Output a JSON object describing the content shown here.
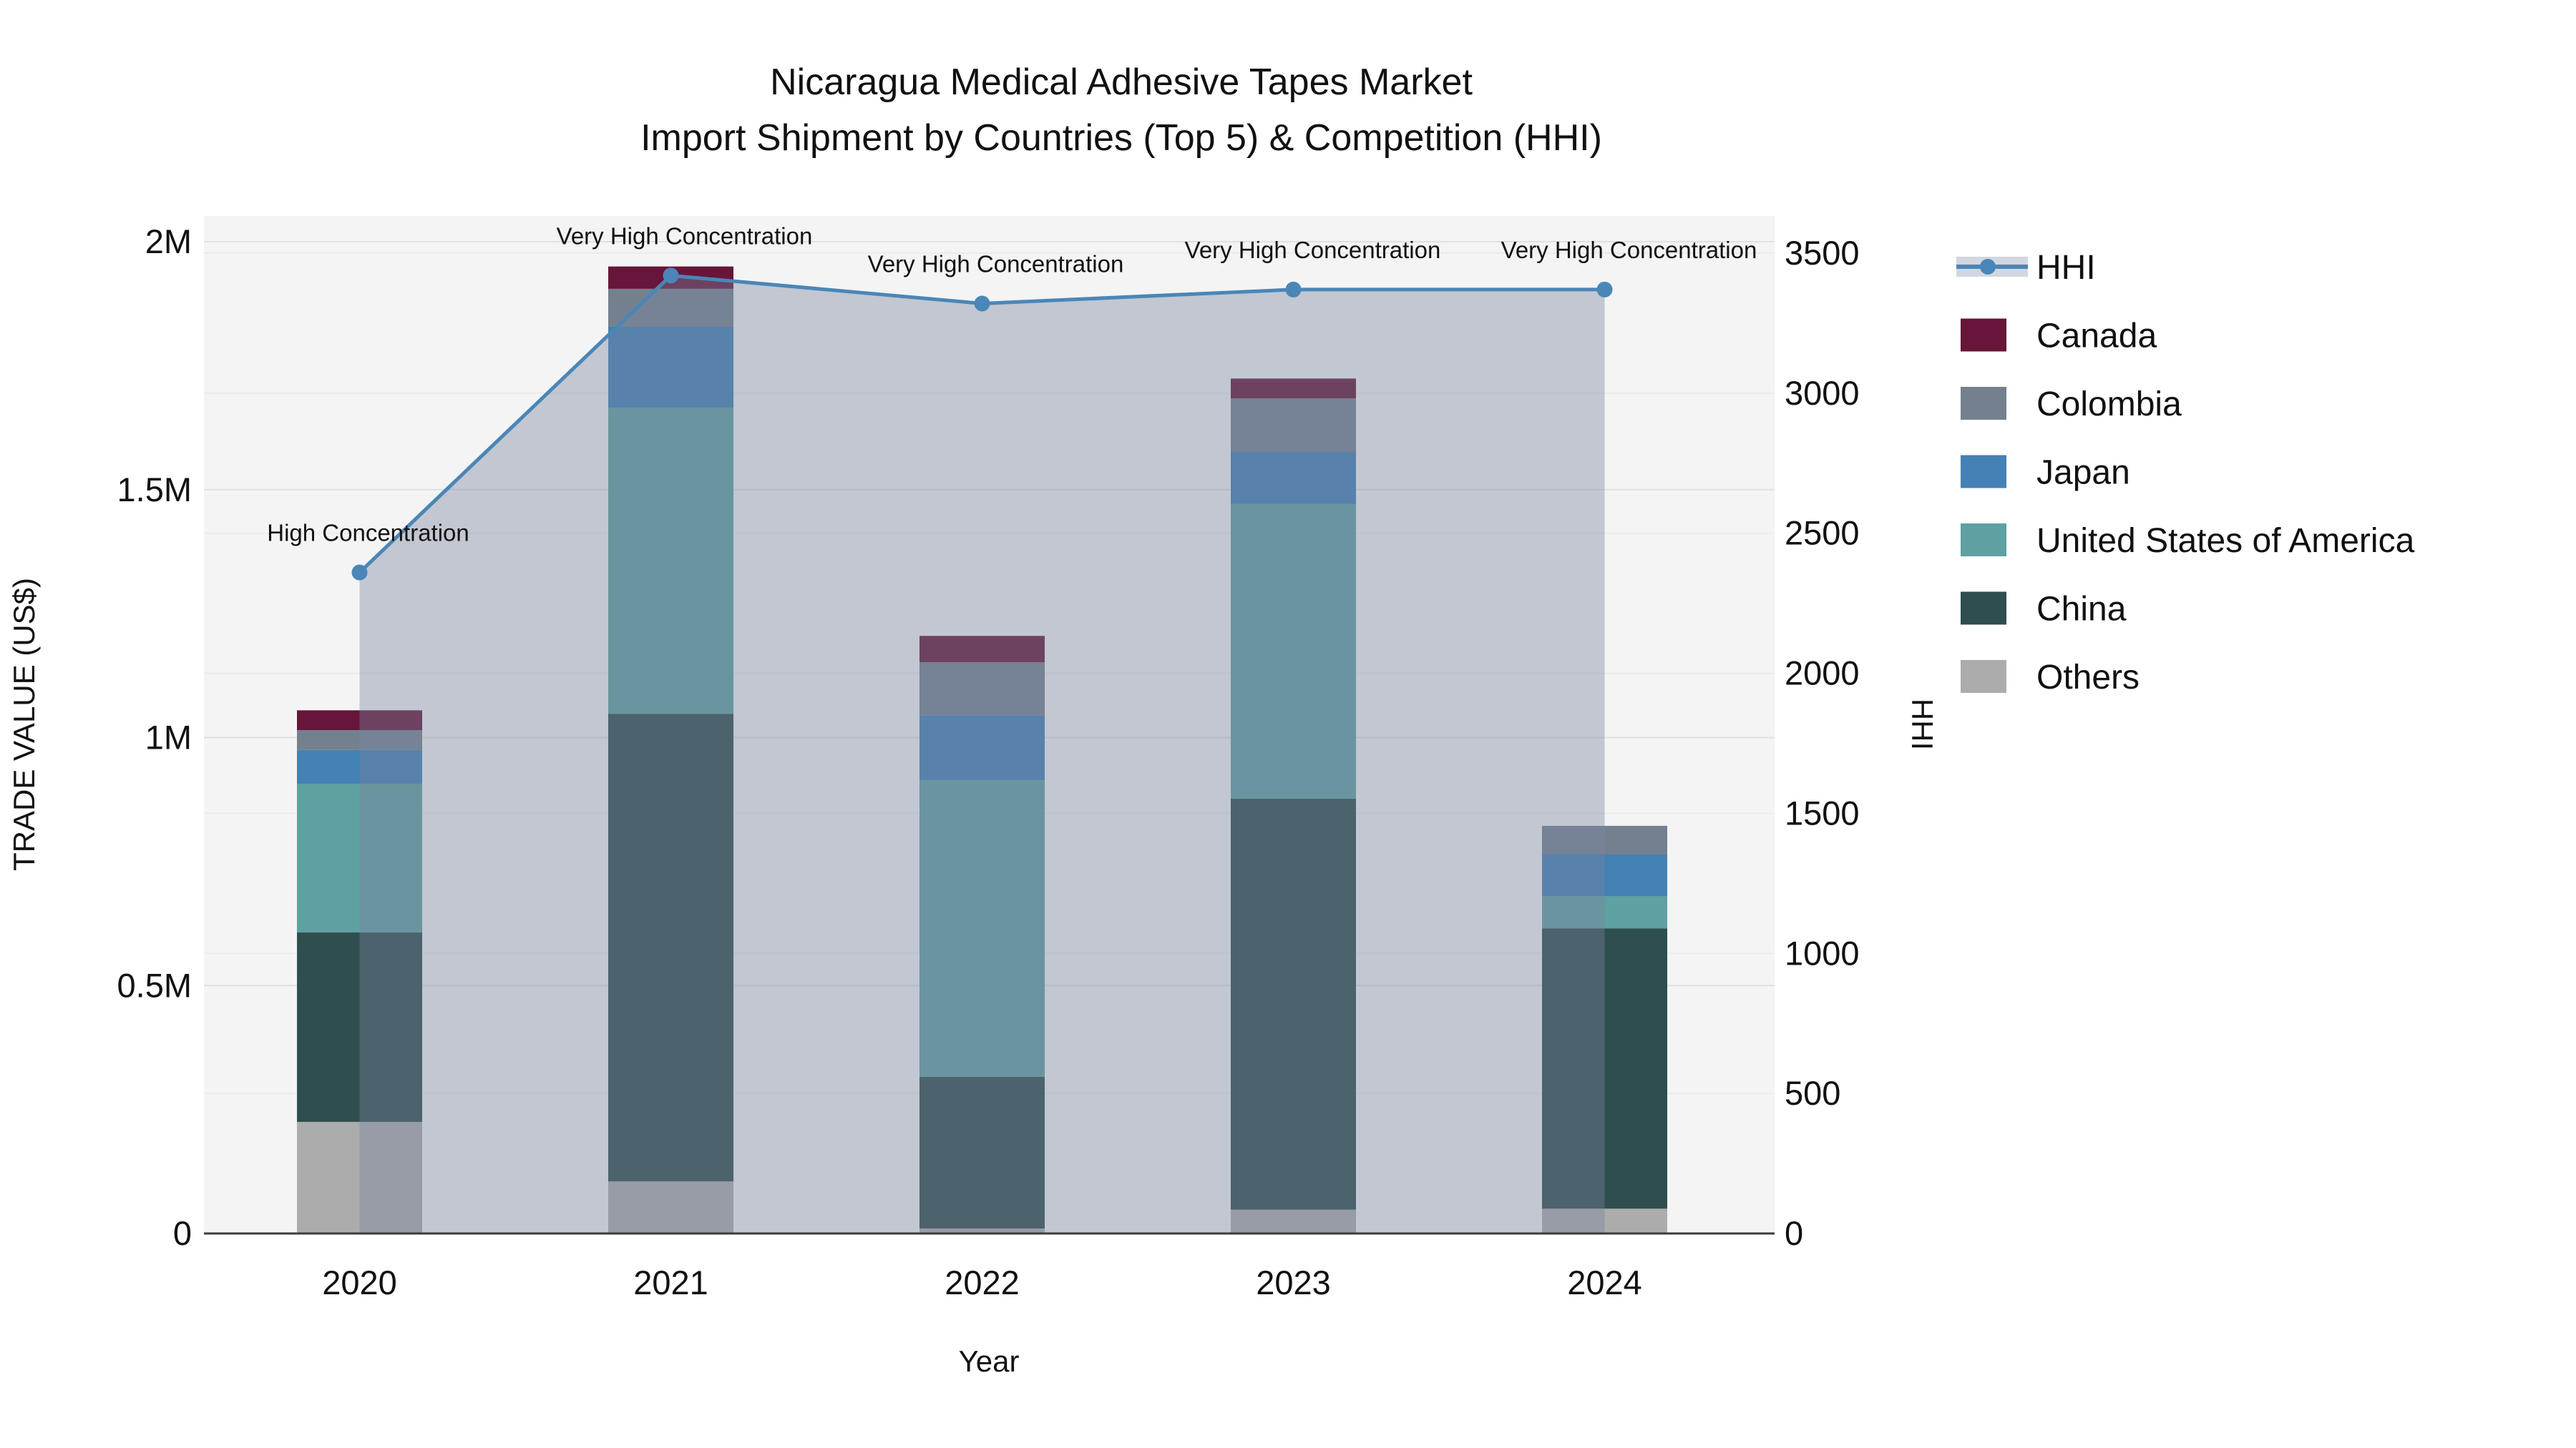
{
  "chart_data": {
    "type": "combo-stacked-bar-line",
    "title_lines": [
      "Nicaragua Medical Adhesive Tapes Market",
      "Import Shipment by Countries (Top 5) & Competition (HHI)"
    ],
    "xlabel": "Year",
    "ylabel_left": "TRADE VALUE (US$)",
    "ylabel_right": "HHI",
    "categories": [
      "2020",
      "2021",
      "2022",
      "2023",
      "2024"
    ],
    "bar_series": [
      {
        "name": "Canada",
        "color": "#671639",
        "values": [
          40000,
          45000,
          53000,
          40000,
          0
        ]
      },
      {
        "name": "Colombia",
        "color": "#75808F",
        "values": [
          40000,
          76000,
          107000,
          108000,
          57000
        ]
      },
      {
        "name": "Japan",
        "color": "#4481B4",
        "values": [
          68000,
          164000,
          131000,
          105000,
          85000
        ]
      },
      {
        "name": "United States of America",
        "color": "#5FA0A2",
        "values": [
          300000,
          617000,
          598000,
          594000,
          65000
        ]
      },
      {
        "name": "China",
        "color": "#2F4E4E",
        "values": [
          382000,
          943000,
          306000,
          829000,
          565000
        ]
      },
      {
        "name": "Others",
        "color": "#ACACAC",
        "values": [
          225000,
          105000,
          10000,
          48000,
          50000
        ]
      }
    ],
    "line_series": {
      "name": "HHI",
      "color": "#4A86B8",
      "fill_color": "rgba(120,133,158,0.40)",
      "values": [
        2360,
        3420,
        3320,
        3370,
        3370
      ]
    },
    "annotations": [
      {
        "category": "2020",
        "text": "High Concentration"
      },
      {
        "category": "2021",
        "text": "Very High Concentration"
      },
      {
        "category": "2022",
        "text": "Very High Concentration"
      },
      {
        "category": "2023",
        "text": "Very High Concentration"
      },
      {
        "category": "2024",
        "text": "Very High Concentration"
      }
    ],
    "y_left_axis": {
      "tick_labels": [
        "0",
        "0.5M",
        "1M",
        "1.5M",
        "2M"
      ],
      "tick_values": [
        0,
        500000,
        1000000,
        1500000,
        2000000
      ],
      "max": 2000000
    },
    "y_right_axis": {
      "tick_labels": [
        "0",
        "500",
        "1000",
        "1500",
        "2000",
        "2500",
        "3000",
        "3500"
      ],
      "tick_values": [
        0,
        500,
        1000,
        1500,
        2000,
        2500,
        3000,
        3500
      ],
      "max": 3500
    },
    "legend_items": [
      "HHI",
      "Canada",
      "Colombia",
      "Japan",
      "United States of America",
      "China",
      "Others"
    ],
    "layout_hints": {
      "plot_bg": "#F4F4F4",
      "grid_left": "#E0E0E0",
      "grid_right": "#EBEBEB",
      "axis_line": "#3C3C3C",
      "legend_position": "right",
      "grid": "on"
    }
  }
}
